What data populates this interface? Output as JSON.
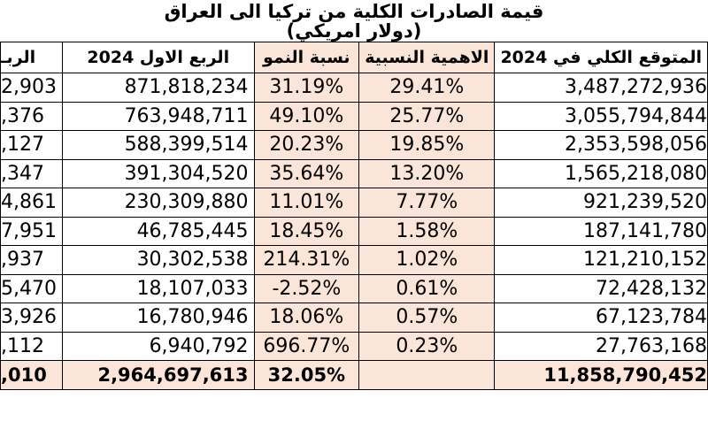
{
  "title": {
    "line1": "قيمة الصادرات الكلية من تركيا الى العراق",
    "line2": "(دولار امريكي)"
  },
  "headers": {
    "col0": "الربـ",
    "col1": "الربع الاول 2024",
    "col2": "نسبة النمو",
    "col3": "الاهمية النسبية",
    "col4": "المتوقع الكلي في 2024"
  },
  "rows": [
    {
      "c0": "2,903",
      "c1": "871,818,234",
      "c2": "31.19%",
      "c3": "29.41%",
      "c4": "3,487,272,936"
    },
    {
      "c0": ",376",
      "c1": "763,948,711",
      "c2": "49.10%",
      "c3": "25.77%",
      "c4": "3,055,794,844"
    },
    {
      "c0": ",127",
      "c1": "588,399,514",
      "c2": "20.23%",
      "c3": "19.85%",
      "c4": "2,353,598,056"
    },
    {
      "c0": ",347",
      "c1": "391,304,520",
      "c2": "35.64%",
      "c3": "13.20%",
      "c4": "1,565,218,080"
    },
    {
      "c0": "4,861",
      "c1": "230,309,880",
      "c2": "11.01%",
      "c3": "7.77%",
      "c4": "921,239,520"
    },
    {
      "c0": "7,951",
      "c1": "46,785,445",
      "c2": "18.45%",
      "c3": "1.58%",
      "c4": "187,141,780"
    },
    {
      "c0": ",937",
      "c1": "30,302,538",
      "c2": "214.31%",
      "c3": "1.02%",
      "c4": "121,210,152"
    },
    {
      "c0": "5,470",
      "c1": "18,107,033",
      "c2": "-2.52%",
      "c3": "0.61%",
      "c4": "72,428,132"
    },
    {
      "c0": "3,926",
      "c1": "16,780,946",
      "c2": "18.06%",
      "c3": "0.57%",
      "c4": "67,123,784"
    },
    {
      "c0": ",112",
      "c1": "6,940,792",
      "c2": "696.77%",
      "c3": "0.23%",
      "c4": "27,763,168"
    }
  ],
  "total": {
    "c0": ",010",
    "c1": "2,964,697,613",
    "c2": "32.05%",
    "c3": "",
    "c4": "11,858,790,452"
  },
  "colors": {
    "highlight": "#fbe4d8",
    "border": "#000000"
  }
}
